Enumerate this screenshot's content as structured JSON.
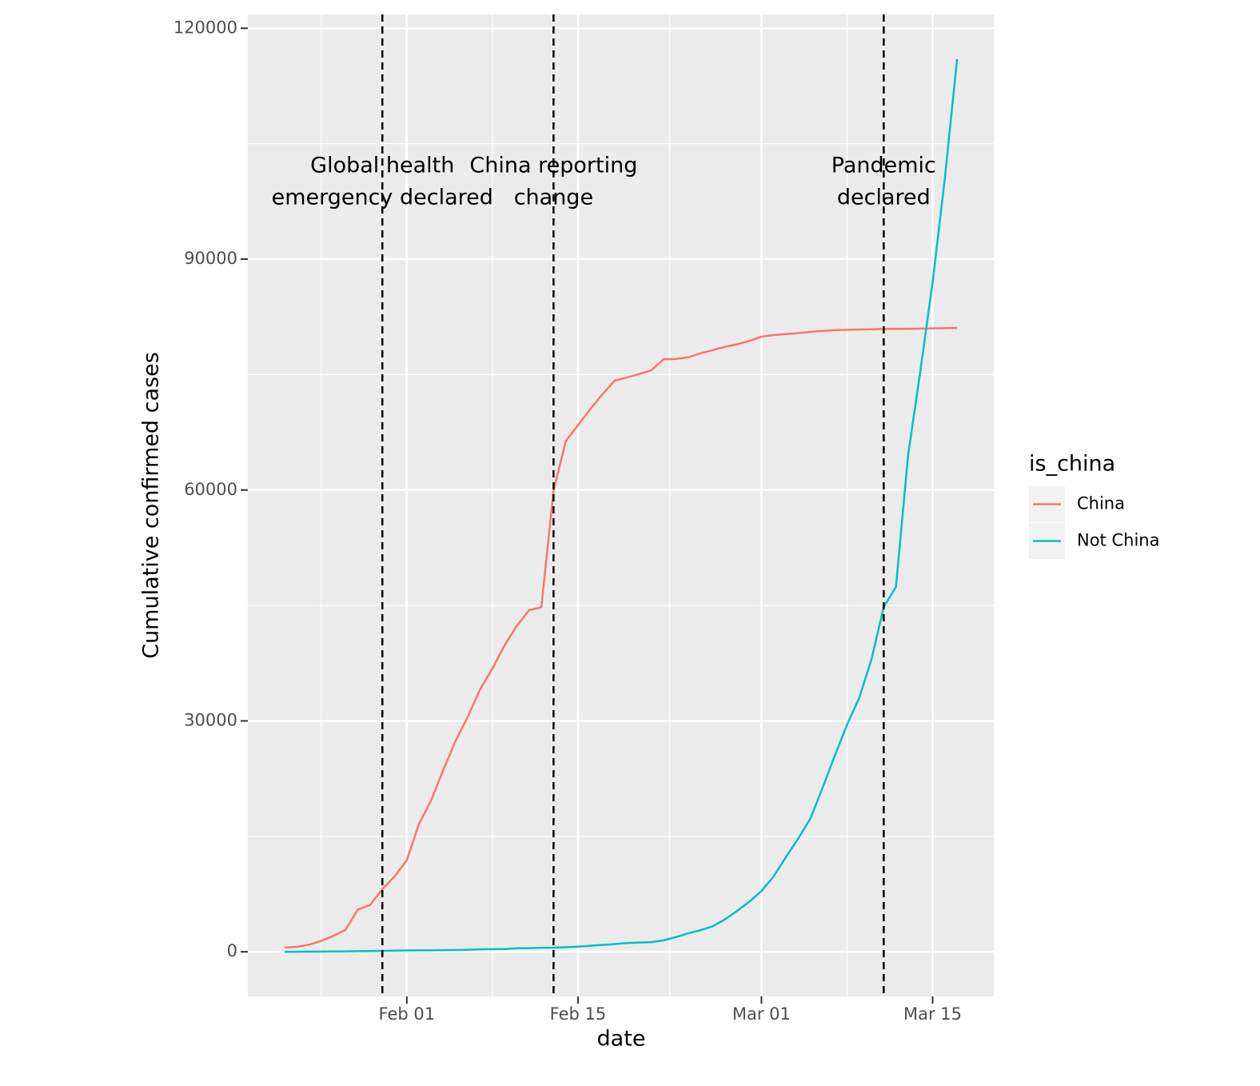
{
  "chart_data": {
    "type": "line",
    "x_label": "date",
    "y_label": "Cumulative confirmed cases",
    "legend_title": "is_china",
    "legend": "right",
    "grid": true,
    "x": [
      "Jan 22",
      "Jan 23",
      "Jan 24",
      "Jan 25",
      "Jan 26",
      "Jan 27",
      "Jan 28",
      "Jan 29",
      "Jan 30",
      "Jan 31",
      "Feb 01",
      "Feb 02",
      "Feb 03",
      "Feb 04",
      "Feb 05",
      "Feb 06",
      "Feb 07",
      "Feb 08",
      "Feb 09",
      "Feb 10",
      "Feb 11",
      "Feb 12",
      "Feb 13",
      "Feb 14",
      "Feb 15",
      "Feb 16",
      "Feb 17",
      "Feb 18",
      "Feb 19",
      "Feb 20",
      "Feb 21",
      "Feb 22",
      "Feb 23",
      "Feb 24",
      "Feb 25",
      "Feb 26",
      "Feb 27",
      "Feb 28",
      "Feb 29",
      "Mar 01",
      "Mar 02",
      "Mar 03",
      "Mar 04",
      "Mar 05",
      "Mar 06",
      "Mar 07",
      "Mar 08",
      "Mar 09",
      "Mar 10",
      "Mar 11",
      "Mar 12",
      "Mar 13",
      "Mar 14",
      "Mar 15",
      "Mar 16",
      "Mar 17"
    ],
    "series": [
      {
        "name": "China",
        "color": "#F8766D",
        "values": [
          548,
          643,
          920,
          1406,
          2075,
          2877,
          5509,
          6087,
          8141,
          9802,
          11891,
          16630,
          19716,
          23707,
          27440,
          30587,
          34110,
          36814,
          39829,
          42354,
          44386,
          44759,
          59895,
          66358,
          68413,
          70513,
          72434,
          74211,
          74619,
          75077,
          75550,
          77001,
          77022,
          77241,
          77754,
          78166,
          78600,
          78928,
          79356,
          79932,
          80136,
          80261,
          80386,
          80537,
          80690,
          80770,
          80823,
          80860,
          80887,
          80921,
          80932,
          80945,
          80977,
          81003,
          81033,
          81058
        ]
      },
      {
        "name": "Not China",
        "color": "#00BFC4",
        "values": [
          7,
          11,
          21,
          28,
          43,
          50,
          83,
          93,
          122,
          153,
          173,
          183,
          188,
          212,
          227,
          265,
          317,
          343,
          361,
          457,
          476,
          523,
          538,
          595,
          685,
          780,
          896,
          1000,
          1130,
          1200,
          1250,
          1500,
          1900,
          2400,
          2800,
          3300,
          4200,
          5300,
          6500,
          7900,
          9800,
          12300,
          14700,
          17300,
          21300,
          25500,
          29500,
          33000,
          38000,
          44800,
          47400,
          64600,
          75500,
          87000,
          100500,
          116000
        ]
      }
    ],
    "xlim": [
      "Jan 19",
      "Mar 20"
    ],
    "xticks": [
      "Feb 01",
      "Feb 15",
      "Mar 01",
      "Mar 15"
    ],
    "ylim": [
      -5800,
      121800
    ],
    "yticks": [
      0,
      30000,
      60000,
      90000,
      120000
    ],
    "annotations": [
      {
        "x": "Jan 30",
        "y": 100000,
        "lines": [
          "Global health",
          "emergency declared"
        ]
      },
      {
        "x": "Feb 13",
        "y": 100000,
        "lines": [
          "China reporting",
          "change"
        ]
      },
      {
        "x": "Mar 11",
        "y": 100000,
        "lines": [
          "Pandemic",
          "declared"
        ]
      }
    ]
  }
}
